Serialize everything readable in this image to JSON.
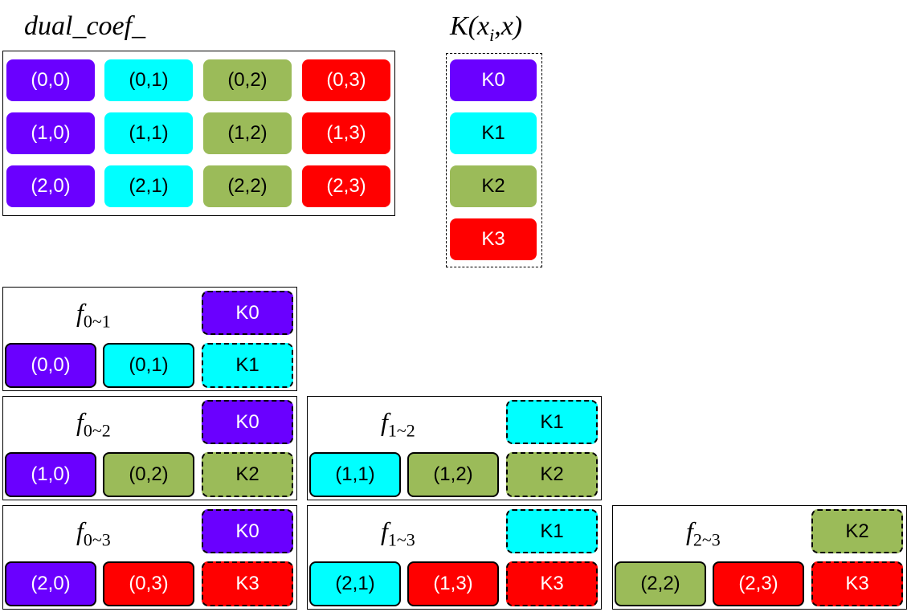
{
  "dual_coef": {
    "title": "dual_coef_",
    "rows": [
      [
        {
          "text": "(0,0)",
          "color": "#6a00ff"
        },
        {
          "text": "(0,1)",
          "color": "#00ffff"
        },
        {
          "text": "(0,2)",
          "color": "#9bbb59"
        },
        {
          "text": "(0,3)",
          "color": "#ff0000"
        }
      ],
      [
        {
          "text": "(1,0)",
          "color": "#6a00ff"
        },
        {
          "text": "(1,1)",
          "color": "#00ffff"
        },
        {
          "text": "(1,2)",
          "color": "#9bbb59"
        },
        {
          "text": "(1,3)",
          "color": "#ff0000"
        }
      ],
      [
        {
          "text": "(2,0)",
          "color": "#6a00ff"
        },
        {
          "text": "(2,1)",
          "color": "#00ffff"
        },
        {
          "text": "(2,2)",
          "color": "#9bbb59"
        },
        {
          "text": "(2,3)",
          "color": "#ff0000"
        }
      ]
    ]
  },
  "kernels": {
    "title": {
      "pre": "K(x",
      "sub": "i",
      "post": ",x)"
    },
    "items": [
      {
        "text": "K0",
        "color": "#6a00ff"
      },
      {
        "text": "K1",
        "color": "#00ffff"
      },
      {
        "text": "K2",
        "color": "#9bbb59"
      },
      {
        "text": "K3",
        "color": "#ff0000"
      }
    ]
  },
  "panels": [
    {
      "name": "f",
      "sub": "0~1",
      "top": {
        "text": "K0",
        "color": "#6a00ff"
      },
      "bottom": [
        {
          "text": "(0,0)",
          "color": "#6a00ff"
        },
        {
          "text": "(0,1)",
          "color": "#00ffff"
        },
        {
          "text": "K1",
          "color": "#00ffff"
        }
      ]
    },
    {
      "name": "f",
      "sub": "0~2",
      "top": {
        "text": "K0",
        "color": "#6a00ff"
      },
      "bottom": [
        {
          "text": "(1,0)",
          "color": "#6a00ff"
        },
        {
          "text": "(0,2)",
          "color": "#9bbb59"
        },
        {
          "text": "K2",
          "color": "#9bbb59"
        }
      ]
    },
    {
      "name": "f",
      "sub": "1~2",
      "top": {
        "text": "K1",
        "color": "#00ffff"
      },
      "bottom": [
        {
          "text": "(1,1)",
          "color": "#00ffff"
        },
        {
          "text": "(1,2)",
          "color": "#9bbb59"
        },
        {
          "text": "K2",
          "color": "#9bbb59"
        }
      ]
    },
    {
      "name": "f",
      "sub": "0~3",
      "top": {
        "text": "K0",
        "color": "#6a00ff"
      },
      "bottom": [
        {
          "text": "(2,0)",
          "color": "#6a00ff"
        },
        {
          "text": "(0,3)",
          "color": "#ff0000"
        },
        {
          "text": "K3",
          "color": "#ff0000"
        }
      ]
    },
    {
      "name": "f",
      "sub": "1~3",
      "top": {
        "text": "K1",
        "color": "#00ffff"
      },
      "bottom": [
        {
          "text": "(2,1)",
          "color": "#00ffff"
        },
        {
          "text": "(1,3)",
          "color": "#ff0000"
        },
        {
          "text": "K3",
          "color": "#ff0000"
        }
      ]
    },
    {
      "name": "f",
      "sub": "2~3",
      "top": {
        "text": "K2",
        "color": "#9bbb59"
      },
      "bottom": [
        {
          "text": "(2,2)",
          "color": "#9bbb59"
        },
        {
          "text": "(2,3)",
          "color": "#ff0000"
        },
        {
          "text": "K3",
          "color": "#ff0000"
        }
      ]
    }
  ]
}
